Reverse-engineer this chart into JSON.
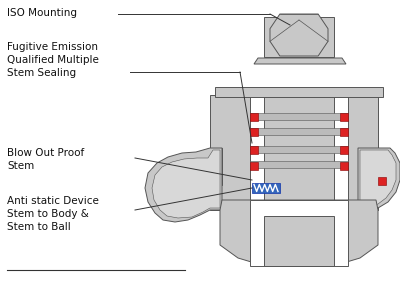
{
  "bg_color": "#ffffff",
  "gray_fill": "#c8c8c8",
  "gray_stroke": "#555555",
  "red_fill": "#dd2222",
  "blue_fill": "#3366bb",
  "white_fill": "#ffffff",
  "line_color": "#333333",
  "text_color": "#111111",
  "label_iso": "ISO Mounting",
  "label_fugitive": "Fugitive Emission\nQualified Multiple\nStem Sealing",
  "label_blowout": "Blow Out Proof\nStem",
  "label_antistatic": "Anti static Device\nStem to Body &\nStem to Ball",
  "annotation_fontsize": 7.5
}
